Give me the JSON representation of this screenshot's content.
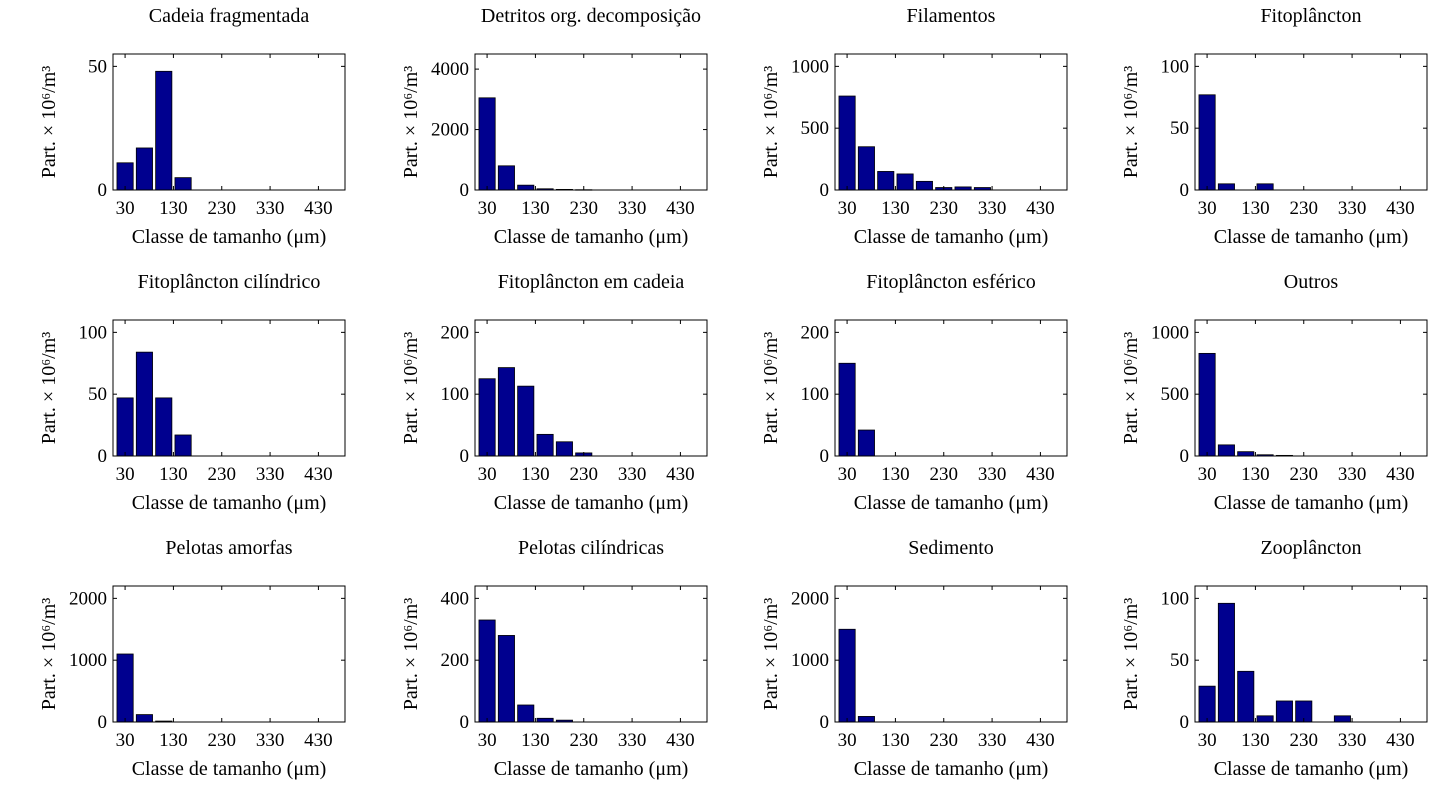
{
  "colors": {
    "bar": "#00008f",
    "bar_edge": "#000000"
  },
  "chart_data": [
    {
      "type": "bar",
      "title": "Cadeia fragmentada",
      "xlabel": "Classe de tamanho (μm)",
      "ylabel": "Part. × 10⁶/m³",
      "x": [
        30,
        70,
        110,
        150,
        190,
        230,
        270,
        310,
        350,
        390,
        430,
        470
      ],
      "values": [
        11,
        17,
        48,
        5,
        0,
        0,
        0,
        0,
        0,
        0,
        0,
        0
      ],
      "xlim": [
        5,
        485
      ],
      "ylim": [
        0,
        55
      ],
      "yticks": [
        0,
        50
      ],
      "xticks": [
        30,
        130,
        230,
        330,
        430
      ]
    },
    {
      "type": "bar",
      "title": "Detritos org. decomposição",
      "xlabel": "Classe de tamanho (μm)",
      "ylabel": "Part. × 10⁶/m³",
      "x": [
        30,
        70,
        110,
        150,
        190,
        230,
        270,
        310,
        350,
        390,
        430,
        470
      ],
      "values": [
        3050,
        800,
        160,
        40,
        20,
        10,
        0,
        0,
        0,
        0,
        0,
        0
      ],
      "xlim": [
        5,
        485
      ],
      "ylim": [
        0,
        4500
      ],
      "yticks": [
        0,
        2000,
        4000
      ],
      "xticks": [
        30,
        130,
        230,
        330,
        430
      ]
    },
    {
      "type": "bar",
      "title": "Filamentos",
      "xlabel": "Classe de tamanho (μm)",
      "ylabel": "Part. × 10⁶/m³",
      "x": [
        30,
        70,
        110,
        150,
        190,
        230,
        270,
        310,
        350,
        390,
        430,
        470
      ],
      "values": [
        760,
        350,
        150,
        130,
        70,
        20,
        25,
        20,
        0,
        0,
        0,
        0
      ],
      "xlim": [
        5,
        485
      ],
      "ylim": [
        0,
        1100
      ],
      "yticks": [
        0,
        500,
        1000
      ],
      "xticks": [
        30,
        130,
        230,
        330,
        430
      ]
    },
    {
      "type": "bar",
      "title": "Fitoplâncton",
      "xlabel": "Classe de tamanho (μm)",
      "ylabel": "Part. × 10⁶/m³",
      "x": [
        30,
        70,
        110,
        150,
        190,
        230,
        270,
        310,
        350,
        390,
        430,
        470
      ],
      "values": [
        77,
        5,
        0,
        5,
        0,
        0,
        0,
        0,
        0,
        0,
        0,
        0
      ],
      "xlim": [
        5,
        485
      ],
      "ylim": [
        0,
        110
      ],
      "yticks": [
        0,
        50,
        100
      ],
      "xticks": [
        30,
        130,
        230,
        330,
        430
      ]
    },
    {
      "type": "bar",
      "title": "Fitoplâncton cilíndrico",
      "xlabel": "Classe de tamanho (μm)",
      "ylabel": "Part. × 10⁶/m³",
      "x": [
        30,
        70,
        110,
        150,
        190,
        230,
        270,
        310,
        350,
        390,
        430,
        470
      ],
      "values": [
        47,
        84,
        47,
        17,
        0,
        0,
        0,
        0,
        0,
        0,
        0,
        0
      ],
      "xlim": [
        5,
        485
      ],
      "ylim": [
        0,
        110
      ],
      "yticks": [
        0,
        50,
        100
      ],
      "xticks": [
        30,
        130,
        230,
        330,
        430
      ]
    },
    {
      "type": "bar",
      "title": "Fitoplâncton em cadeia",
      "xlabel": "Classe de tamanho (μm)",
      "ylabel": "Part. × 10⁶/m³",
      "x": [
        30,
        70,
        110,
        150,
        190,
        230,
        270,
        310,
        350,
        390,
        430,
        470
      ],
      "values": [
        125,
        143,
        113,
        35,
        23,
        5,
        0,
        0,
        0,
        0,
        0,
        0
      ],
      "xlim": [
        5,
        485
      ],
      "ylim": [
        0,
        220
      ],
      "yticks": [
        0,
        100,
        200
      ],
      "xticks": [
        30,
        130,
        230,
        330,
        430
      ]
    },
    {
      "type": "bar",
      "title": "Fitoplâncton esférico",
      "xlabel": "Classe de tamanho (μm)",
      "ylabel": "Part. × 10⁶/m³",
      "x": [
        30,
        70,
        110,
        150,
        190,
        230,
        270,
        310,
        350,
        390,
        430,
        470
      ],
      "values": [
        150,
        42,
        0,
        0,
        0,
        0,
        0,
        0,
        0,
        0,
        0,
        0
      ],
      "xlim": [
        5,
        485
      ],
      "ylim": [
        0,
        220
      ],
      "yticks": [
        0,
        100,
        200
      ],
      "xticks": [
        30,
        130,
        230,
        330,
        430
      ]
    },
    {
      "type": "bar",
      "title": "Outros",
      "xlabel": "Classe de tamanho (μm)",
      "ylabel": "Part. × 10⁶/m³",
      "x": [
        30,
        70,
        110,
        150,
        190,
        230,
        270,
        310,
        350,
        390,
        430,
        470
      ],
      "values": [
        830,
        90,
        35,
        10,
        5,
        0,
        0,
        0,
        0,
        0,
        0,
        0
      ],
      "xlim": [
        5,
        485
      ],
      "ylim": [
        0,
        1100
      ],
      "yticks": [
        0,
        500,
        1000
      ],
      "xticks": [
        30,
        130,
        230,
        330,
        430
      ]
    },
    {
      "type": "bar",
      "title": "Pelotas amorfas",
      "xlabel": "Classe de tamanho (μm)",
      "ylabel": "Part. × 10⁶/m³",
      "x": [
        30,
        70,
        110,
        150,
        190,
        230,
        270,
        310,
        350,
        390,
        430,
        470
      ],
      "values": [
        1100,
        120,
        15,
        0,
        0,
        0,
        0,
        0,
        0,
        0,
        0,
        0
      ],
      "xlim": [
        5,
        485
      ],
      "ylim": [
        0,
        2200
      ],
      "yticks": [
        0,
        1000,
        2000
      ],
      "xticks": [
        30,
        130,
        230,
        330,
        430
      ]
    },
    {
      "type": "bar",
      "title": "Pelotas cilíndricas",
      "xlabel": "Classe de tamanho (μm)",
      "ylabel": "Part. × 10⁶/m³",
      "x": [
        30,
        70,
        110,
        150,
        190,
        230,
        270,
        310,
        350,
        390,
        430,
        470
      ],
      "values": [
        330,
        280,
        55,
        12,
        6,
        0,
        0,
        0,
        0,
        0,
        0,
        0
      ],
      "xlim": [
        5,
        485
      ],
      "ylim": [
        0,
        440
      ],
      "yticks": [
        0,
        200,
        400
      ],
      "xticks": [
        30,
        130,
        230,
        330,
        430
      ]
    },
    {
      "type": "bar",
      "title": "Sedimento",
      "xlabel": "Classe de tamanho (μm)",
      "ylabel": "Part. × 10⁶/m³",
      "x": [
        30,
        70,
        110,
        150,
        190,
        230,
        270,
        310,
        350,
        390,
        430,
        470
      ],
      "values": [
        1500,
        90,
        0,
        0,
        0,
        0,
        0,
        0,
        0,
        0,
        0,
        0
      ],
      "xlim": [
        5,
        485
      ],
      "ylim": [
        0,
        2200
      ],
      "yticks": [
        0,
        1000,
        2000
      ],
      "xticks": [
        30,
        130,
        230,
        330,
        430
      ]
    },
    {
      "type": "bar",
      "title": "Zooplâncton",
      "xlabel": "Classe de tamanho (μm)",
      "ylabel": "Part. × 10⁶/m³",
      "x": [
        30,
        70,
        110,
        150,
        190,
        230,
        270,
        310,
        350,
        390,
        430,
        470
      ],
      "values": [
        29,
        96,
        41,
        5,
        17,
        17,
        0,
        5,
        0,
        0,
        0,
        0
      ],
      "xlim": [
        5,
        485
      ],
      "ylim": [
        0,
        110
      ],
      "yticks": [
        0,
        50,
        100
      ],
      "xticks": [
        30,
        130,
        230,
        330,
        430
      ]
    }
  ]
}
